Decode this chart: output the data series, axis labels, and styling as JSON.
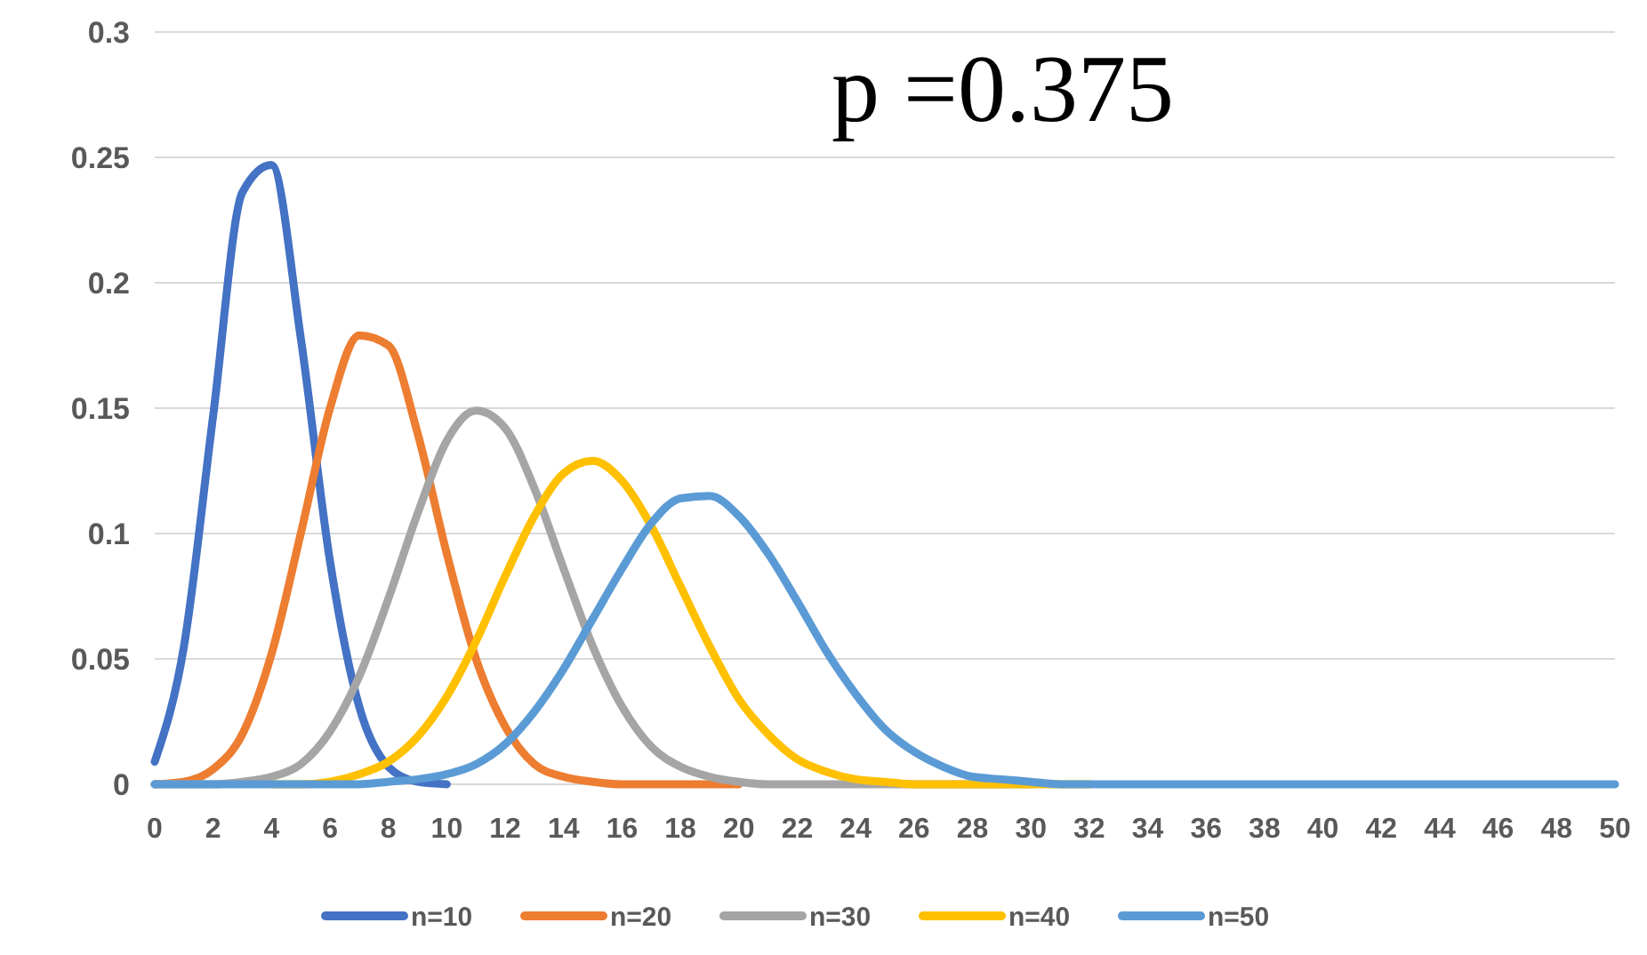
{
  "chart_data": {
    "type": "line",
    "title": "p =0.375",
    "xlim": [
      0,
      50
    ],
    "xticks": [
      0,
      2,
      4,
      6,
      8,
      10,
      12,
      14,
      16,
      18,
      20,
      22,
      24,
      26,
      28,
      30,
      32,
      34,
      36,
      38,
      40,
      42,
      44,
      46,
      48,
      50
    ],
    "ylim": [
      0,
      0.3
    ],
    "yticks": [
      0,
      0.05,
      0.1,
      0.15,
      0.2,
      0.25,
      0.3
    ],
    "grid": "y",
    "legend": "bottom",
    "marker": "none",
    "line_style": "solid",
    "series": [
      {
        "name": "n=10",
        "color": "#4472c4",
        "x": [
          0,
          1,
          2,
          3,
          4,
          5,
          6,
          7,
          8,
          9,
          10
        ],
        "values": [
          0.009,
          0.055,
          0.147,
          0.236,
          0.247,
          0.178,
          0.089,
          0.031,
          0.007,
          0.001,
          0
        ]
      },
      {
        "name": "n=20",
        "color": "#ed7d31",
        "x": [
          0,
          1,
          2,
          3,
          4,
          5,
          6,
          7,
          8,
          9,
          10,
          11,
          12,
          13,
          14,
          15,
          16,
          17,
          18,
          19,
          20
        ],
        "values": [
          0,
          0.001,
          0.006,
          0.02,
          0.052,
          0.1,
          0.15,
          0.179,
          0.175,
          0.14,
          0.092,
          0.05,
          0.023,
          0.008,
          0.003,
          0.001,
          0,
          0,
          0,
          0,
          0
        ]
      },
      {
        "name": "n=30",
        "color": "#a5a5a5",
        "x": [
          0,
          1,
          2,
          3,
          4,
          5,
          6,
          7,
          8,
          9,
          10,
          11,
          12,
          13,
          14,
          15,
          16,
          17,
          18,
          19,
          20,
          21,
          22,
          23,
          24,
          25,
          26,
          27,
          28,
          29,
          30
        ],
        "values": [
          0,
          0,
          0,
          0.001,
          0.003,
          0.008,
          0.021,
          0.043,
          0.074,
          0.108,
          0.137,
          0.149,
          0.142,
          0.118,
          0.086,
          0.055,
          0.031,
          0.015,
          0.007,
          0.003,
          0.001,
          0,
          0,
          0,
          0,
          0,
          0,
          0,
          0,
          0,
          0
        ]
      },
      {
        "name": "n=40",
        "color": "#ffc000",
        "x": [
          4,
          5,
          6,
          7,
          8,
          9,
          10,
          11,
          12,
          13,
          14,
          15,
          16,
          17,
          18,
          19,
          20,
          21,
          22,
          23,
          24,
          25,
          26,
          27,
          28,
          29,
          30,
          31,
          32
        ],
        "values": [
          0,
          0,
          0.001,
          0.004,
          0.009,
          0.019,
          0.035,
          0.057,
          0.083,
          0.107,
          0.124,
          0.129,
          0.121,
          0.103,
          0.079,
          0.055,
          0.034,
          0.02,
          0.01,
          0.005,
          0.002,
          0.001,
          0,
          0,
          0,
          0,
          0,
          0,
          0
        ]
      },
      {
        "name": "n=50",
        "color": "#5b9bd5",
        "x": [
          0,
          1,
          2,
          3,
          4,
          5,
          6,
          7,
          8,
          9,
          10,
          11,
          12,
          13,
          14,
          15,
          16,
          17,
          18,
          19,
          20,
          21,
          22,
          23,
          24,
          25,
          26,
          27,
          28,
          29,
          30,
          31,
          32,
          33,
          34,
          35,
          36,
          37,
          38,
          39,
          40,
          41,
          42,
          43,
          44,
          45,
          46,
          47,
          48,
          49,
          50
        ],
        "values": [
          0,
          0,
          0,
          0,
          0,
          0,
          0,
          0,
          0.001,
          0.002,
          0.004,
          0.008,
          0.016,
          0.029,
          0.046,
          0.066,
          0.086,
          0.104,
          0.114,
          0.115,
          0.107,
          0.092,
          0.073,
          0.053,
          0.036,
          0.022,
          0.013,
          0.007,
          0.003,
          0.002,
          0.001,
          0,
          0,
          0,
          0,
          0,
          0,
          0,
          0,
          0,
          0,
          0,
          0,
          0,
          0,
          0,
          0,
          0,
          0,
          0,
          0
        ]
      }
    ]
  }
}
